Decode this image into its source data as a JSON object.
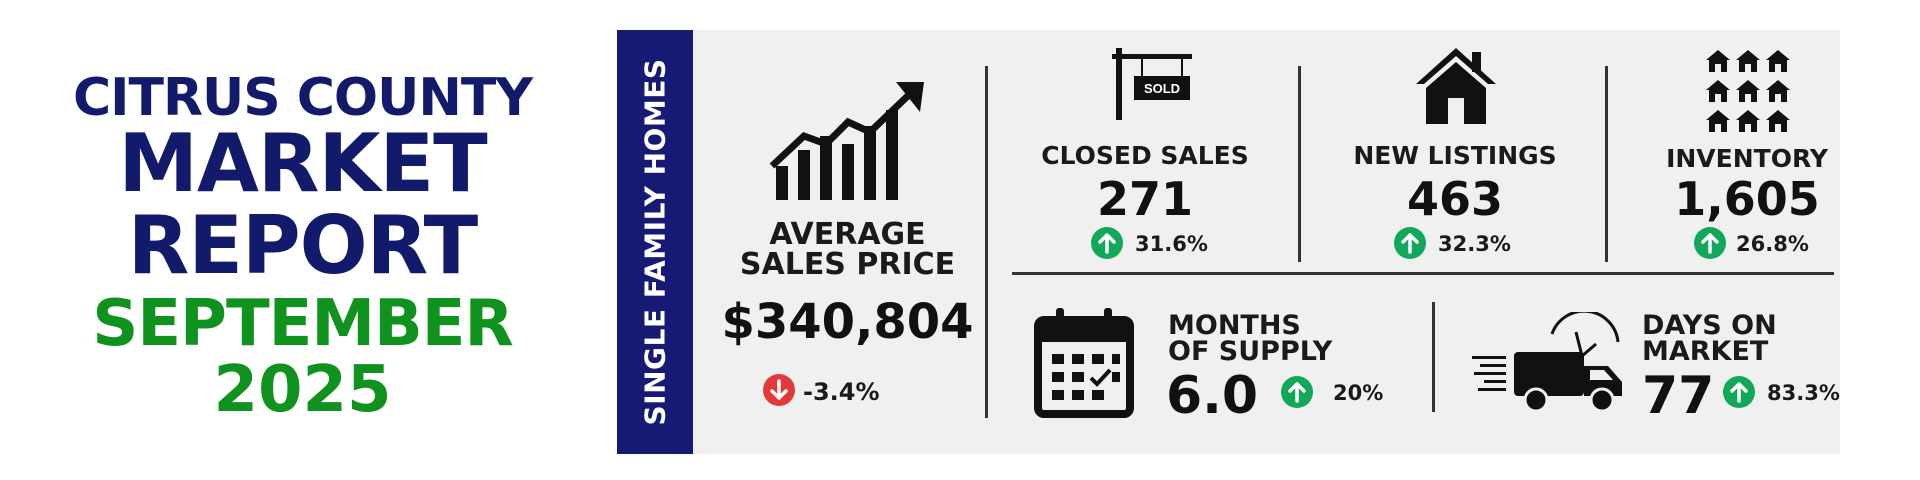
{
  "title": {
    "line1": "CITRUS COUNTY",
    "line2": "MARKET",
    "line3": "REPORT",
    "line4": "SEPTEMBER",
    "line5": "2025"
  },
  "sidebar_label": "SINGLE FAMILY HOMES",
  "colors": {
    "navy": "#161a74",
    "green": "#10921f",
    "up": "#11a85a",
    "down": "#e23a3a"
  },
  "metrics": {
    "avg_price": {
      "label_line1": "AVERAGE",
      "label_line2": "SALES PRICE",
      "value": "$340,804",
      "change": "-3.4%",
      "direction": "down",
      "icon": "rising-bar-chart-icon"
    },
    "closed_sales": {
      "label": "CLOSED SALES",
      "value": "271",
      "change": "31.6%",
      "direction": "up",
      "icon": "sold-sign-icon",
      "sign_text": "SOLD"
    },
    "new_listings": {
      "label": "NEW LISTINGS",
      "value": "463",
      "change": "32.3%",
      "direction": "up",
      "icon": "house-icon"
    },
    "inventory": {
      "label": "INVENTORY",
      "value": "1,605",
      "change": "26.8%",
      "direction": "up",
      "icon": "house-grid-icon"
    },
    "months_supply": {
      "label_line1": "MONTHS",
      "label_line2": "OF SUPPLY",
      "value": "6.0",
      "change": "20%",
      "direction": "up",
      "icon": "calendar-icon"
    },
    "days_on_market": {
      "label_line1": "DAYS ON",
      "label_line2": "MARKET",
      "value": "77",
      "change": "83.3%",
      "direction": "up",
      "icon": "delivery-truck-icon"
    }
  }
}
